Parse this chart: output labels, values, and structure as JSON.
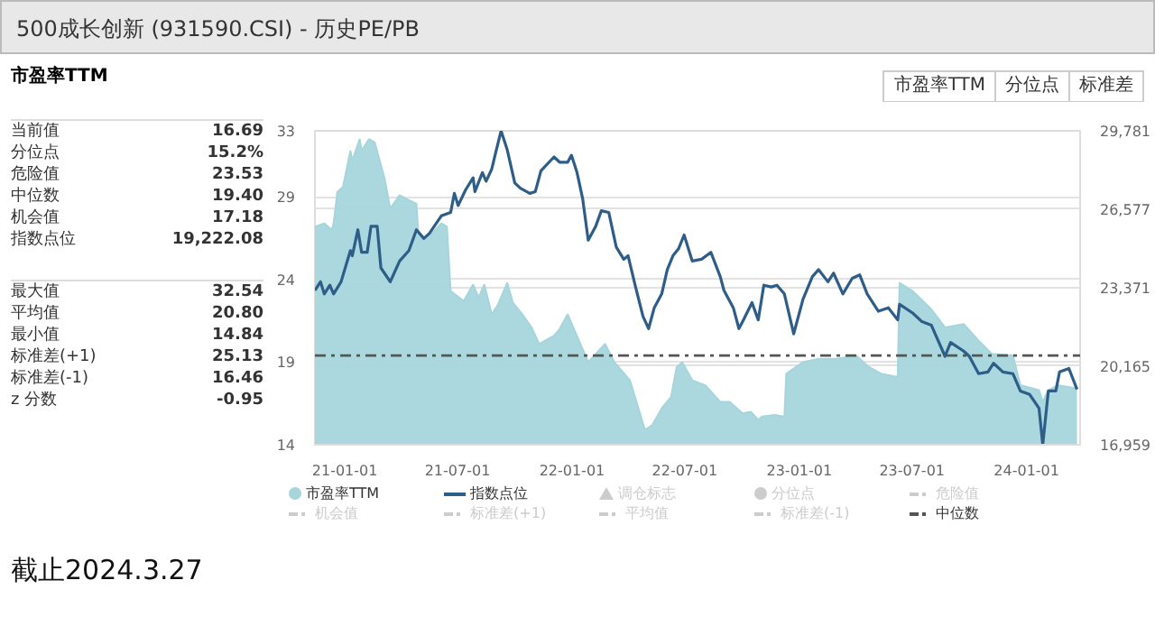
{
  "chart_data": [
    {
      "type": "other",
      "title": "市盈率TTM",
      "annotations": [
        "当前值",
        "16.69",
        "分位点",
        "15.2%",
        "危险值",
        "23.53",
        "中位数",
        "19.40",
        "机会值",
        "17.18",
        "指数点位",
        "19,222.08",
        "最大值",
        "32.54",
        "平均值",
        "20.80",
        "最小值",
        "14.84",
        "标准差(+1)",
        "25.13",
        "标准差(-1)",
        "16.46",
        "z 分数",
        "-0.95"
      ]
    },
    {
      "type": "area",
      "title": "500成长创新 (931590.CSI) - 历史PE/PB",
      "annotations": [
        "市盈率TTM",
        "分位点",
        "标准差",
        "截止2024.3.27"
      ],
      "xlim": [
        "2020-11-14",
        "2024-03-27"
      ],
      "xticks": [
        {
          "value": "2021-01-01",
          "label": "21-01-01"
        },
        {
          "value": "2021-07-01",
          "label": "21-07-01"
        },
        {
          "value": "2022-01-01",
          "label": "22-01-01"
        },
        {
          "value": "2022-07-01",
          "label": "22-07-01"
        },
        {
          "value": "2023-01-01",
          "label": "23-01-01"
        },
        {
          "value": "2023-07-01",
          "label": "23-07-01"
        },
        {
          "value": "2024-01-01",
          "label": "24-01-01"
        }
      ],
      "ylim": [
        14,
        33
      ],
      "yticks": [
        14,
        19,
        24,
        29,
        33
      ],
      "y2lim": [
        16959,
        29781
      ],
      "y2ticks": [
        {
          "value": 16959,
          "label": "16,959"
        },
        {
          "value": 20165,
          "label": "20,165"
        },
        {
          "value": 23371,
          "label": "23,371"
        },
        {
          "value": 26577,
          "label": "26,577"
        },
        {
          "value": 29781,
          "label": "29,781"
        }
      ],
      "grid": "y",
      "legend": "bottom",
      "ref_lines": [
        {
          "axis": "y",
          "value": 19.4,
          "label": "中位数",
          "color": "#555555",
          "line_style": "dashed"
        }
      ],
      "series": [
        {
          "name": "市盈率TTM",
          "type": "area",
          "color": "#a6d5dc",
          "x": [
            "2020-11-14",
            "2020-11-29",
            "2020-12-11",
            "2020-12-14",
            "2020-12-20",
            "2020-12-29",
            "2021-01-10",
            "2021-01-13",
            "2021-01-25",
            "2021-01-28",
            "2021-02-09",
            "2021-02-18",
            "2021-03-06",
            "2021-03-15",
            "2021-03-30",
            "2021-04-14",
            "2021-04-26",
            "2021-04-29",
            "2021-05-11",
            "2021-06-05",
            "2021-06-14",
            "2021-06-20",
            "2021-07-11",
            "2021-07-26",
            "2021-08-04",
            "2021-08-13",
            "2021-08-25",
            "2021-09-03",
            "2021-09-19",
            "2021-09-28",
            "2021-10-13",
            "2021-10-28",
            "2021-11-09",
            "2021-12-03",
            "2021-12-12",
            "2021-12-25",
            "2022-01-03",
            "2022-01-27",
            "2022-02-23",
            "2022-03-10",
            "2022-04-04",
            "2022-04-28",
            "2022-05-10",
            "2022-05-25",
            "2022-06-09",
            "2022-06-18",
            "2022-06-27",
            "2022-07-13",
            "2022-08-03",
            "2022-08-27",
            "2022-09-11",
            "2022-10-02",
            "2022-10-15",
            "2022-10-27",
            "2022-11-02",
            "2022-11-23",
            "2022-12-08",
            "2022-12-11",
            "2023-01-07",
            "2023-02-01",
            "2023-03-03",
            "2023-04-02",
            "2023-04-23",
            "2023-05-12",
            "2023-06-08",
            "2023-06-11",
            "2023-07-02",
            "2023-08-01",
            "2023-08-23",
            "2023-09-22",
            "2023-10-16",
            "2023-11-06",
            "2023-12-10",
            "2023-12-22",
            "2024-01-21",
            "2024-01-27",
            "2024-02-05",
            "2024-02-20",
            "2024-03-22"
          ],
          "values": [
            27.2,
            27.4,
            27.0,
            27.4,
            29.3,
            29.6,
            31.8,
            31.2,
            32.5,
            31.8,
            32.5,
            32.3,
            30.1,
            28.3,
            29.1,
            28.8,
            28.6,
            26.9,
            26.4,
            27.4,
            27.2,
            23.3,
            22.7,
            23.7,
            22.9,
            23.7,
            21.9,
            22.4,
            23.8,
            22.6,
            21.9,
            21.1,
            20.1,
            20.6,
            21.0,
            21.9,
            21.1,
            19.0,
            20.1,
            19.0,
            17.9,
            14.9,
            15.2,
            16.2,
            16.9,
            18.7,
            19.0,
            17.9,
            17.6,
            16.6,
            16.6,
            15.9,
            16.0,
            15.5,
            15.7,
            15.8,
            15.7,
            18.3,
            19.0,
            19.2,
            19.2,
            19.4,
            18.7,
            18.3,
            18.1,
            23.8,
            23.3,
            22.2,
            21.1,
            21.3,
            20.3,
            19.5,
            19.4,
            17.6,
            17.3,
            16.6,
            17.3,
            17.6,
            17.4
          ]
        },
        {
          "name": "指数点位",
          "type": "line",
          "axis": "y2",
          "color": "#2e5d87",
          "x": [
            "2020-11-14",
            "2020-11-23",
            "2020-11-29",
            "2020-12-08",
            "2020-12-14",
            "2020-12-26",
            "2021-01-10",
            "2021-01-13",
            "2021-01-22",
            "2021-01-28",
            "2021-02-06",
            "2021-02-12",
            "2021-02-22",
            "2021-02-28",
            "2021-03-15",
            "2021-03-30",
            "2021-04-14",
            "2021-04-26",
            "2021-05-08",
            "2021-05-17",
            "2021-06-05",
            "2021-06-20",
            "2021-06-26",
            "2021-07-02",
            "2021-07-14",
            "2021-07-26",
            "2021-07-29",
            "2021-08-10",
            "2021-08-16",
            "2021-08-25",
            "2021-08-31",
            "2021-09-09",
            "2021-09-19",
            "2021-10-01",
            "2021-10-10",
            "2021-10-25",
            "2021-11-03",
            "2021-11-12",
            "2021-12-03",
            "2021-12-12",
            "2021-12-25",
            "2021-12-31",
            "2022-01-09",
            "2022-01-18",
            "2022-01-27",
            "2022-02-08",
            "2022-02-17",
            "2022-03-01",
            "2022-03-13",
            "2022-03-25",
            "2022-04-01",
            "2022-04-13",
            "2022-04-25",
            "2022-05-04",
            "2022-05-13",
            "2022-05-25",
            "2022-06-03",
            "2022-06-12",
            "2022-06-21",
            "2022-06-30",
            "2022-07-13",
            "2022-07-28",
            "2022-08-12",
            "2022-08-27",
            "2022-09-02",
            "2022-09-17",
            "2022-09-26",
            "2022-10-02",
            "2022-10-17",
            "2022-10-27",
            "2022-11-05",
            "2022-11-17",
            "2022-11-26",
            "2022-12-08",
            "2022-12-23",
            "2023-01-07",
            "2023-01-22",
            "2023-02-01",
            "2023-02-16",
            "2023-02-25",
            "2023-03-12",
            "2023-03-27",
            "2023-04-08",
            "2023-04-20",
            "2023-05-08",
            "2023-05-24",
            "2023-06-08",
            "2023-06-11",
            "2023-07-02",
            "2023-07-17",
            "2023-08-01",
            "2023-08-23",
            "2023-09-01",
            "2023-09-22",
            "2023-10-01",
            "2023-10-16",
            "2023-10-31",
            "2023-11-09",
            "2023-11-24",
            "2023-12-10",
            "2023-12-22",
            "2024-01-06",
            "2024-01-21",
            "2024-01-27",
            "2024-02-05",
            "2024-02-17",
            "2024-02-23",
            "2024-03-09",
            "2024-03-22"
          ],
          "values": [
            23260,
            23614,
            23119,
            23473,
            23119,
            23614,
            24889,
            24676,
            25738,
            24818,
            24818,
            25880,
            25880,
            24180,
            23614,
            24464,
            24889,
            25738,
            25384,
            25597,
            26304,
            26446,
            27225,
            26729,
            27367,
            27862,
            27296,
            28074,
            27721,
            28216,
            28853,
            29781,
            28995,
            27650,
            27437,
            27225,
            27296,
            28145,
            28712,
            28499,
            28499,
            28782,
            28074,
            27013,
            25313,
            25880,
            26517,
            26446,
            25030,
            24535,
            24676,
            23402,
            22198,
            21703,
            22552,
            23119,
            24110,
            24676,
            24960,
            25526,
            24464,
            24535,
            24818,
            23826,
            23260,
            22552,
            21703,
            21986,
            22764,
            22057,
            23473,
            23402,
            23473,
            23119,
            21490,
            22906,
            23826,
            24110,
            23614,
            23968,
            23119,
            23756,
            23897,
            23119,
            22410,
            22552,
            22057,
            22693,
            22339,
            21986,
            21844,
            20570,
            21136,
            20782,
            20570,
            19862,
            19932,
            20286,
            19932,
            19862,
            19154,
            19012,
            18446,
            16959,
            19154,
            19154,
            19932,
            20074,
            19222
          ]
        },
        {
          "name": "调仓标志",
          "type": "scatter",
          "marker": "triangle",
          "color": "#cccccc"
        },
        {
          "name": "分位点",
          "type": "scatter",
          "marker": "circle",
          "color": "#cccccc"
        },
        {
          "name": "危险值",
          "type": "line",
          "line_style": "dashed",
          "color": "#cccccc"
        },
        {
          "name": "机会值",
          "type": "line",
          "line_style": "dashed",
          "color": "#cccccc"
        },
        {
          "name": "标准差(+1)",
          "type": "line",
          "line_style": "dashed",
          "color": "#cccccc"
        },
        {
          "name": "平均值",
          "type": "line",
          "line_style": "dashed",
          "color": "#cccccc"
        },
        {
          "name": "标准差(-1)",
          "type": "line",
          "line_style": "dashed",
          "color": "#cccccc"
        }
      ]
    }
  ]
}
